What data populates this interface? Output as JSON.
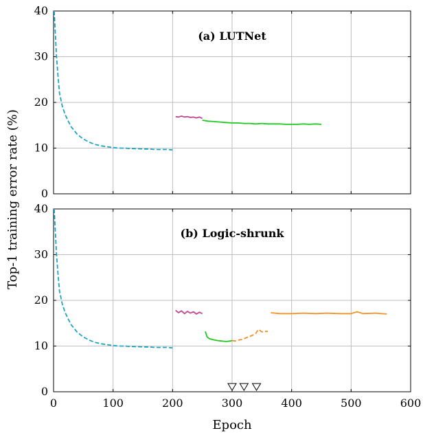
{
  "chart_data": [
    {
      "type": "line",
      "title": "(a) LUTNet",
      "xlabel": "",
      "ylabel": "",
      "xlim": [
        0,
        600
      ],
      "ylim": [
        0,
        40
      ],
      "xticks": [
        0,
        100,
        200,
        300,
        400,
        500,
        600
      ],
      "yticks": [
        0,
        10,
        20,
        30,
        40
      ],
      "show_x_tick_labels": false,
      "grid": true,
      "series": [
        {
          "color": "#1aa3c7",
          "dashed": true,
          "x": [
            1,
            3,
            5,
            8,
            10,
            15,
            20,
            25,
            30,
            40,
            50,
            60,
            70,
            80,
            90,
            100,
            110,
            120,
            130,
            140,
            150,
            160,
            170,
            180,
            190,
            200
          ],
          "y": [
            40,
            35,
            30,
            25,
            22,
            19,
            17.2,
            15.8,
            14.6,
            13,
            12,
            11.3,
            10.8,
            10.5,
            10.3,
            10.1,
            10,
            10,
            9.9,
            9.9,
            9.8,
            9.8,
            9.7,
            9.7,
            9.7,
            9.6
          ]
        },
        {
          "color": "#c0468f",
          "dashed": false,
          "x": [
            205,
            210,
            215,
            220,
            225,
            230,
            235,
            240,
            245,
            250
          ],
          "y": [
            16.9,
            16.8,
            17,
            16.8,
            16.9,
            16.7,
            16.8,
            16.6,
            16.8,
            16.5
          ]
        },
        {
          "color": "#1ec81e",
          "dashed": false,
          "x": [
            250,
            255,
            260,
            270,
            280,
            290,
            300,
            310,
            320,
            330,
            340,
            350,
            360,
            370,
            380,
            390,
            400,
            410,
            420,
            430,
            440,
            450
          ],
          "y": [
            16.1,
            16,
            15.9,
            15.8,
            15.7,
            15.6,
            15.5,
            15.5,
            15.4,
            15.4,
            15.3,
            15.4,
            15.3,
            15.3,
            15.3,
            15.2,
            15.2,
            15.2,
            15.3,
            15.2,
            15.3,
            15.2
          ]
        }
      ],
      "markers": []
    },
    {
      "type": "line",
      "title": "(b) Logic-shrunk",
      "xlabel": "Epoch",
      "ylabel": "",
      "xlim": [
        0,
        600
      ],
      "ylim": [
        0,
        40
      ],
      "xticks": [
        0,
        100,
        200,
        300,
        400,
        500,
        600
      ],
      "yticks": [
        0,
        10,
        20,
        30,
        40
      ],
      "show_x_tick_labels": true,
      "grid": true,
      "series": [
        {
          "color": "#1aa3c7",
          "dashed": true,
          "x": [
            1,
            3,
            5,
            8,
            10,
            15,
            20,
            25,
            30,
            40,
            50,
            60,
            70,
            80,
            90,
            100,
            110,
            120,
            130,
            140,
            150,
            160,
            170,
            180,
            190,
            200
          ],
          "y": [
            40,
            35,
            30,
            25,
            22,
            19,
            17.2,
            15.8,
            14.6,
            13,
            12,
            11.3,
            10.8,
            10.5,
            10.3,
            10.1,
            10,
            10,
            9.9,
            9.9,
            9.8,
            9.8,
            9.7,
            9.7,
            9.7,
            9.6
          ]
        },
        {
          "color": "#c0468f",
          "dashed": false,
          "x": [
            205,
            210,
            215,
            220,
            225,
            230,
            235,
            240,
            245,
            250
          ],
          "y": [
            17.8,
            17.3,
            17.7,
            17.1,
            17.6,
            17.2,
            17.5,
            17,
            17.4,
            17.1
          ]
        },
        {
          "color": "#1ec81e",
          "dashed": false,
          "x": [
            255,
            258,
            262,
            268,
            275,
            282,
            290,
            297,
            300
          ],
          "y": [
            13.2,
            12,
            11.6,
            11.4,
            11.2,
            11.1,
            11,
            11.1,
            11.2
          ]
        },
        {
          "color": "#f39124",
          "dashed": true,
          "x": [
            300,
            305,
            310,
            315,
            320,
            325,
            330,
            335,
            340,
            343,
            345,
            350,
            355,
            360
          ],
          "y": [
            11.2,
            11.1,
            11.3,
            11.4,
            11.6,
            11.9,
            12.1,
            12.4,
            12.8,
            13.4,
            13.6,
            13.1,
            13.2,
            13.2
          ]
        },
        {
          "color": "#f39124",
          "dashed": false,
          "x": [
            365,
            380,
            400,
            420,
            440,
            460,
            480,
            500,
            510,
            520,
            540,
            560
          ],
          "y": [
            17.3,
            17.1,
            17.1,
            17.2,
            17.1,
            17.2,
            17.1,
            17.1,
            17.5,
            17.1,
            17.2,
            17
          ]
        }
      ],
      "markers": [
        300,
        320,
        341
      ]
    }
  ],
  "shared_ylabel": "Top-1 training error rate (%)"
}
